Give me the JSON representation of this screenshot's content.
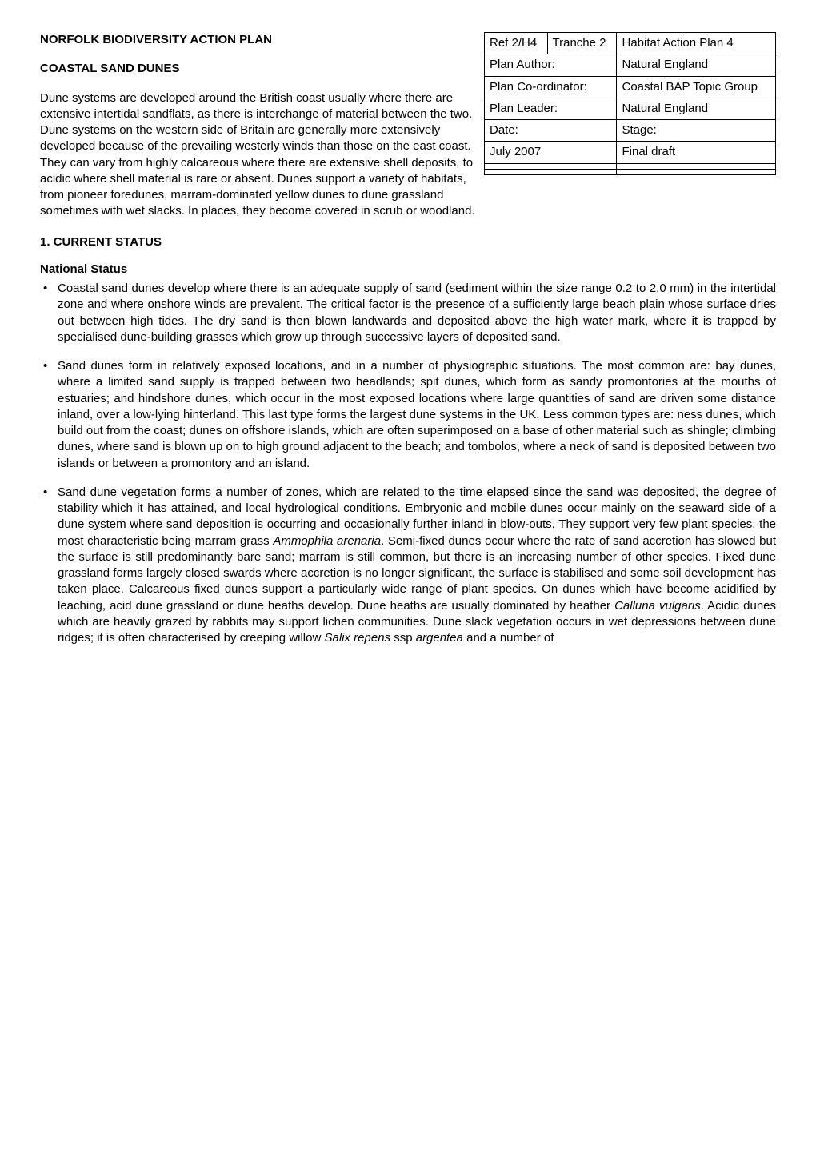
{
  "header": {
    "title": "NORFOLK BIODIVERSITY ACTION PLAN",
    "subtitle": "COASTAL SAND DUNES",
    "intro": "Dune systems are developed around the British coast usually where there are extensive intertidal sandflats, as there is interchange of material between the two. Dune systems on the western side of Britain are generally more extensively developed because of the prevailing westerly winds than those on the east coast. They can vary from highly calcareous where there are extensive shell deposits, to acidic where shell material is rare or absent. Dunes support a variety of habitats, from pioneer foredunes, marram-dominated yellow dunes to dune grassland sometimes with wet slacks. In places, they become covered in scrub or woodland."
  },
  "meta_table": {
    "rows": [
      {
        "c1": "Ref 2/H4",
        "c2": "Tranche 2",
        "c3": "Habitat Action Plan 4"
      },
      {
        "c1_span2": "Plan Author:",
        "c3": "Natural England"
      },
      {
        "c1_span2": "Plan Co-ordinator:",
        "c3": "Coastal BAP Topic Group"
      },
      {
        "c1_span2": "Plan Leader:",
        "c3": "Natural England"
      },
      {
        "c1_span2": "Date:",
        "c3": "Stage:"
      },
      {
        "c1_span2": "July 2007",
        "c3": "Final draft"
      },
      {
        "c1_span2": "",
        "c3": ""
      },
      {
        "c1_span2": "",
        "c3": ""
      }
    ],
    "border_color": "#000000",
    "cell_padding": "3px 6px",
    "font_size": 15
  },
  "section1": {
    "heading": "1. CURRENT STATUS",
    "national_status_label": "National Status",
    "bullets": [
      "Coastal sand dunes develop where there is an adequate supply of sand (sediment within the size range 0.2 to 2.0 mm) in the intertidal zone and where onshore winds are prevalent. The critical factor is the presence of a sufficiently large beach plain whose surface dries out between high tides. The dry sand is then blown landwards and deposited above the high water mark, where it is trapped by specialised dune-building grasses which grow up through successive layers of deposited sand.",
      "Sand dunes form in relatively exposed locations, and in a number of physiographic situations. The most common are: bay dunes, where a limited sand supply is trapped between two headlands; spit dunes, which form as sandy promontories at the mouths of estuaries; and hindshore dunes, which occur in the most exposed locations where large quantities of sand are driven some distance inland, over a low-lying hinterland.  This last type forms the largest dune systems in the UK.  Less common types are: ness dunes, which build out from the coast; dunes on offshore islands, which are often superimposed on a base of other material such as shingle; climbing dunes, where sand is blown up on to high ground adjacent to the beach; and tombolos, where a neck of sand is deposited between two islands or between a promontory and an island."
    ],
    "bullet3_parts": {
      "p1": "Sand dune vegetation forms a number of zones, which are related to the time elapsed since the sand was deposited, the degree of stability which it has attained, and local hydrological conditions. Embryonic and mobile dunes occur mainly on the seaward side of a dune system where sand deposition is occurring and occasionally further inland in blow-outs. They support very few plant species, the most characteristic being marram grass ",
      "i1": "Ammophila arenaria",
      "p2": ".  Semi-fixed dunes occur where the rate of sand accretion has slowed but the surface is still predominantly bare sand; marram is still common, but there is an increasing number of other species. Fixed dune grassland forms largely closed swards where accretion is no longer significant, the surface is stabilised and some soil development has taken place. Calcareous fixed dunes support a particularly wide range of plant species. On dunes which have become acidified by leaching, acid dune grassland or dune heaths develop. Dune heaths are usually dominated by heather ",
      "i2": "Calluna vulgaris",
      "p3": ". Acidic dunes which are heavily grazed by rabbits may support lichen communities. Dune slack vegetation occurs in wet depressions between dune ridges; it is often characterised by creeping willow ",
      "i3": "Salix repens",
      "p4": " ssp ",
      "i4": "argentea",
      "p5": " and a number of"
    }
  },
  "style": {
    "page_bg": "#ffffff",
    "text_color": "#000000",
    "font_family": "Arial, Helvetica, sans-serif",
    "body_font_size": 15,
    "heading_weight": "bold"
  }
}
